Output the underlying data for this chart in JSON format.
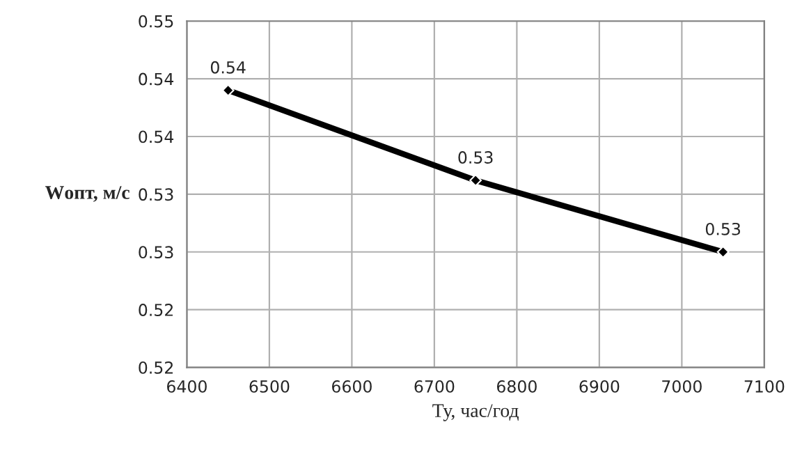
{
  "chart_data": {
    "type": "line",
    "xlabel": "Ту, час/год",
    "ylabel": "Wопт, м/с",
    "x": [
      6450,
      6750,
      7050
    ],
    "series": [
      {
        "color": "#000000",
        "values": [
          0.539,
          0.5312,
          0.525
        ],
        "value_labels": [
          "0.54",
          "0.53",
          "0.53"
        ]
      }
    ],
    "xlim": [
      6400,
      7100
    ],
    "xticks": [
      6400,
      6500,
      6600,
      6700,
      6800,
      6900,
      7000,
      7100
    ],
    "ylim": [
      0.515,
      0.545
    ],
    "yticks": [
      {
        "value": 0.515,
        "label": "0.52"
      },
      {
        "value": 0.52,
        "label": "0.52"
      },
      {
        "value": 0.525,
        "label": "0.53"
      },
      {
        "value": 0.53,
        "label": "0.53"
      },
      {
        "value": 0.535,
        "label": "0.54"
      },
      {
        "value": 0.54,
        "label": "0.54"
      },
      {
        "value": 0.545,
        "label": "0.55"
      }
    ],
    "grid": true,
    "marker": "diamond",
    "line_style": "solid",
    "legend": false
  }
}
